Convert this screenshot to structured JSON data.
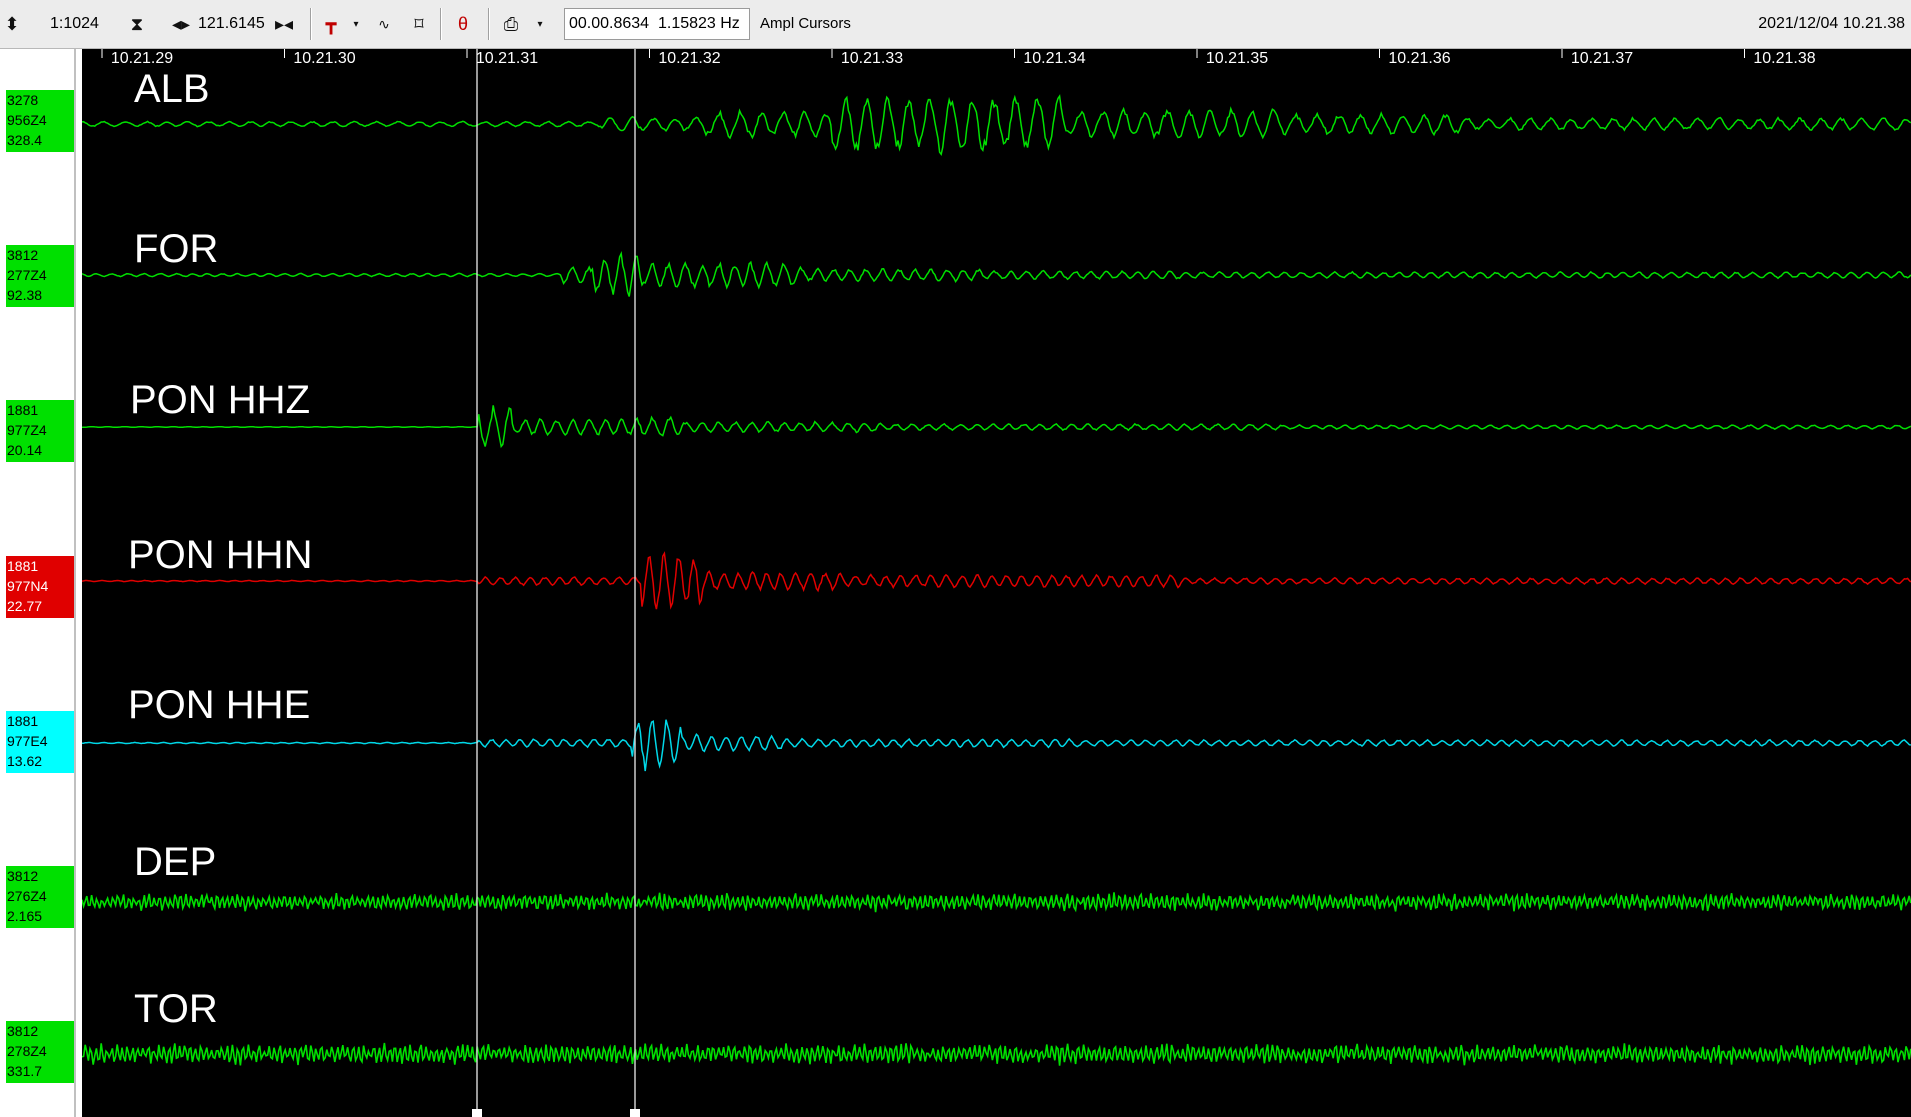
{
  "toolbar": {
    "updown_icon": "updown-arrow-icon",
    "zoom_ratio": "1:1024",
    "vzoom_icon": "vertical-zoom-icon",
    "amplitude_icon": "left-right-arrow-icon",
    "amplitude_value": "121.6145",
    "filter_icon": "filter-icon",
    "pick_icon": "pick-icon",
    "wave_icon": "wave-icon",
    "fit_icon": "fit-icon",
    "phase_icon": "phase-icon",
    "print_icon": "printer-icon",
    "cursor_time": "00.00.8634",
    "cursor_freq": "1.15823 Hz",
    "cursor_mode": "Ampl Cursors",
    "datetime": "2021/12/04 10.21.38"
  },
  "time_axis": {
    "ticks": [
      "10.21.29",
      "10.21.30",
      "10.21.31",
      "10.21.32",
      "10.21.33",
      "10.21.34",
      "10.21.35",
      "10.21.36",
      "10.21.37",
      "10.21.38"
    ]
  },
  "channels": [
    {
      "name": "ALB",
      "info": [
        "3278",
        "956Z4",
        "328.4"
      ],
      "color": "#00e000",
      "label_bg": "#00e000",
      "label_fg": "#000000"
    },
    {
      "name": "FOR",
      "info": [
        "3812",
        "277Z4",
        "92.38"
      ],
      "color": "#00e000",
      "label_bg": "#00e000",
      "label_fg": "#000000"
    },
    {
      "name": "PON HHZ",
      "info": [
        "1881",
        "977Z4",
        "20.14"
      ],
      "color": "#00e000",
      "label_bg": "#00e000",
      "label_fg": "#000000"
    },
    {
      "name": "PON HHN",
      "info": [
        "1881",
        "977N4",
        "22.77"
      ],
      "color": "#e00000",
      "label_bg": "#e00000",
      "label_fg": "#ffffff"
    },
    {
      "name": "PON HHE",
      "info": [
        "1881",
        "977E4",
        "13.62"
      ],
      "color": "#00d8e8",
      "label_bg": "#00ffff",
      "label_fg": "#000000"
    },
    {
      "name": "DEP",
      "info": [
        "3812",
        "276Z4",
        "2.165"
      ],
      "color": "#00e000",
      "label_bg": "#00e000",
      "label_fg": "#000000"
    },
    {
      "name": "TOR",
      "info": [
        "3812",
        "278Z4",
        "331.7"
      ],
      "color": "#00e000",
      "label_bg": "#00e000",
      "label_fg": "#000000"
    }
  ]
}
